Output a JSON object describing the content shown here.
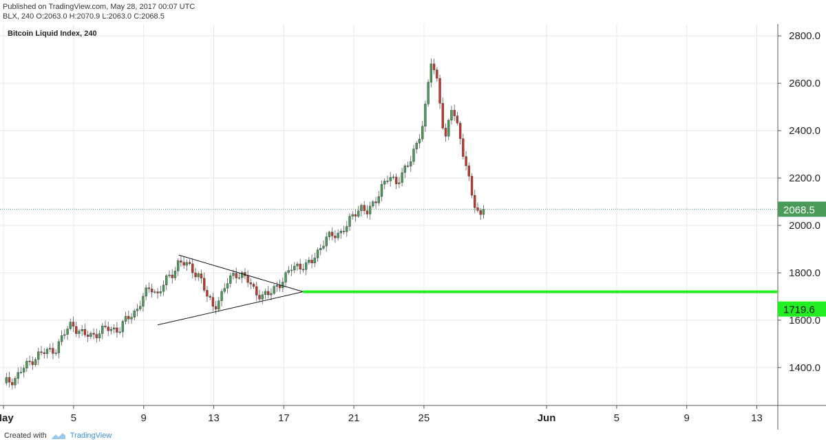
{
  "header": {
    "published": "Published on TradingView.com, May 28, 2017 00:07 UTC",
    "ohlc": "BLX, 240 O:2063.0 H:2070.9 L:2063.0 C:2068.5"
  },
  "footer": {
    "created_with": "Created with",
    "brand": "TradingView"
  },
  "colors": {
    "up": "#4a9a5a",
    "down": "#c0392b",
    "support": "#22ee22",
    "last_price": "#4a9a5a",
    "grid": "#e8e8e8"
  },
  "chart_data": {
    "type": "candlestick",
    "title": "Bitcoin Liquid Index, 240",
    "y_ticks": [
      "1400.0",
      "1600.0",
      "1800.0",
      "2000.0",
      "2200.0",
      "2400.0",
      "2600.0",
      "2800.0"
    ],
    "ylim": [
      1240,
      2850
    ],
    "x_ticks": [
      "May",
      "5",
      "9",
      "13",
      "17",
      "21",
      "25",
      "Jun",
      "5",
      "9",
      "13"
    ],
    "x_tick_days": [
      1,
      5,
      9,
      13,
      17,
      21,
      25,
      32,
      36,
      40,
      44
    ],
    "xlim": [
      0.8,
      45.2
    ],
    "last_price": {
      "value": 2068.5,
      "label": "2068.5"
    },
    "support_line": {
      "value": 1719.6,
      "label": "1719.6",
      "from_day": 18.1
    },
    "triangle": {
      "upper": [
        [
          11.0,
          1875
        ],
        [
          18.1,
          1720
        ]
      ],
      "lower": [
        [
          9.8,
          1580
        ],
        [
          18.1,
          1720
        ]
      ]
    },
    "path": [
      [
        1.0,
        1335
      ],
      [
        1.6,
        1350
      ],
      [
        2.0,
        1385
      ],
      [
        2.6,
        1430
      ],
      [
        3.0,
        1455
      ],
      [
        3.6,
        1470
      ],
      [
        4.0,
        1480
      ],
      [
        4.5,
        1545
      ],
      [
        4.9,
        1590
      ],
      [
        5.2,
        1560
      ],
      [
        5.6,
        1535
      ],
      [
        6.2,
        1540
      ],
      [
        6.6,
        1555
      ],
      [
        7.0,
        1565
      ],
      [
        7.6,
        1560
      ],
      [
        8.0,
        1600
      ],
      [
        8.6,
        1645
      ],
      [
        9.0,
        1700
      ],
      [
        9.4,
        1740
      ],
      [
        9.8,
        1710
      ],
      [
        10.2,
        1760
      ],
      [
        10.6,
        1790
      ],
      [
        11.0,
        1850
      ],
      [
        11.4,
        1835
      ],
      [
        11.8,
        1810
      ],
      [
        12.2,
        1790
      ],
      [
        12.6,
        1700
      ],
      [
        13.0,
        1655
      ],
      [
        13.4,
        1700
      ],
      [
        13.8,
        1760
      ],
      [
        14.2,
        1800
      ],
      [
        14.6,
        1790
      ],
      [
        15.0,
        1760
      ],
      [
        15.4,
        1720
      ],
      [
        15.8,
        1700
      ],
      [
        16.2,
        1710
      ],
      [
        16.6,
        1750
      ],
      [
        17.0,
        1765
      ],
      [
        17.4,
        1820
      ],
      [
        17.8,
        1835
      ],
      [
        18.2,
        1820
      ],
      [
        18.6,
        1850
      ],
      [
        19.0,
        1900
      ],
      [
        19.4,
        1940
      ],
      [
        19.8,
        1960
      ],
      [
        20.2,
        1970
      ],
      [
        20.6,
        1995
      ],
      [
        21.0,
        2050
      ],
      [
        21.4,
        2080
      ],
      [
        21.8,
        2050
      ],
      [
        22.2,
        2100
      ],
      [
        22.6,
        2170
      ],
      [
        23.0,
        2200
      ],
      [
        23.4,
        2180
      ],
      [
        23.8,
        2230
      ],
      [
        24.2,
        2260
      ],
      [
        24.6,
        2350
      ],
      [
        25.0,
        2450
      ],
      [
        25.4,
        2690
      ],
      [
        25.8,
        2600
      ],
      [
        26.2,
        2350
      ],
      [
        26.6,
        2500
      ],
      [
        27.0,
        2400
      ],
      [
        27.4,
        2250
      ],
      [
        27.8,
        2100
      ],
      [
        28.2,
        2040
      ],
      [
        28.4,
        2068.5
      ]
    ]
  }
}
